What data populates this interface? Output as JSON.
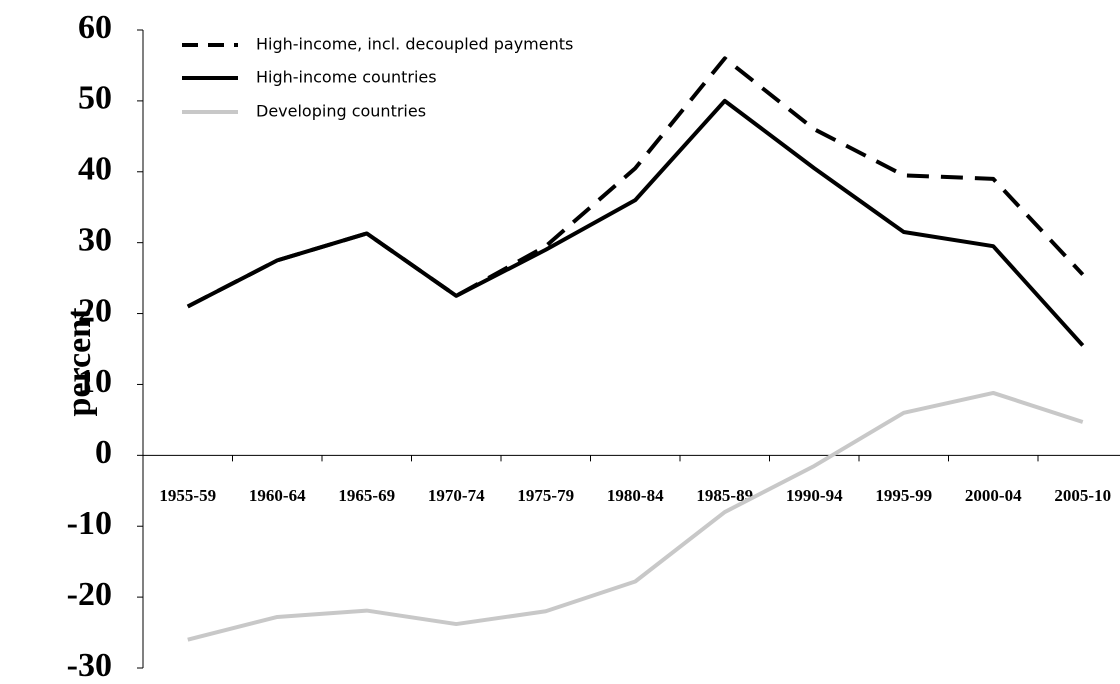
{
  "chart_data": {
    "type": "line",
    "ylabel": "percent",
    "categories": [
      "1955-59",
      "1960-64",
      "1965-69",
      "1970-74",
      "1975-79",
      "1980-84",
      "1985-89",
      "1990-94",
      "1995-99",
      "2000-04",
      "2005-10"
    ],
    "series": [
      {
        "name": "High-income, incl. decoupled payments",
        "color": "#000000",
        "dash": true,
        "values": [
          21,
          27.5,
          31.3,
          22.5,
          29.5,
          40.5,
          56,
          46,
          39.5,
          39,
          25.5
        ]
      },
      {
        "name": "High-income countries",
        "color": "#000000",
        "dash": false,
        "values": [
          21,
          27.5,
          31.3,
          22.5,
          29,
          36,
          50,
          40.5,
          31.5,
          29.5,
          15.5
        ]
      },
      {
        "name": "Developing countries",
        "color": "#c8c8c8",
        "dash": false,
        "values": [
          -26,
          -22.8,
          -21.9,
          -23.8,
          -22,
          -17.8,
          -8,
          -1.5,
          6,
          8.8,
          4.7
        ]
      }
    ],
    "ylim": [
      -30,
      60
    ],
    "yticks": [
      -30,
      -20,
      -10,
      0,
      10,
      20,
      30,
      40,
      50,
      60
    ],
    "grid": false,
    "legend": "upper left"
  }
}
